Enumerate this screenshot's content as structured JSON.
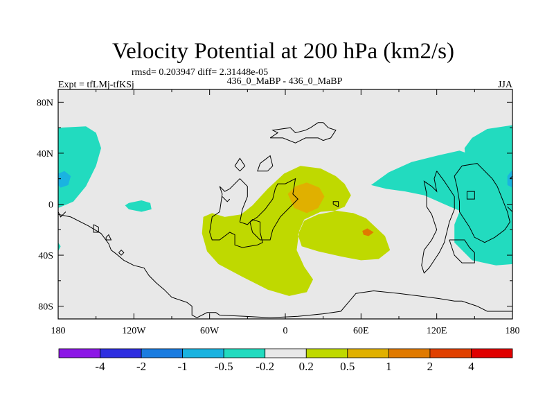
{
  "chart_data": {
    "type": "heatmap",
    "title": "Velocity Potential at 200 hPa (km2/s)",
    "stats_text": "rmsd= 0.203947 diff= 2.31448e-05",
    "left_label": "Expt = tfLMj-tfKSj",
    "center_label": "436_0_MaBP - 436_0_MaBP",
    "right_label": "JJA",
    "xlim": [
      -180,
      180
    ],
    "ylim": [
      -90,
      90
    ],
    "x_ticks": [
      {
        "value": -180,
        "label": "180"
      },
      {
        "value": -120,
        "label": "120W"
      },
      {
        "value": -60,
        "label": "60W"
      },
      {
        "value": 0,
        "label": "0"
      },
      {
        "value": 60,
        "label": "60E"
      },
      {
        "value": 120,
        "label": "120E"
      },
      {
        "value": 180,
        "label": "180"
      }
    ],
    "y_ticks": [
      {
        "value": 80,
        "label": "80N"
      },
      {
        "value": 40,
        "label": "40N"
      },
      {
        "value": 0,
        "label": "0"
      },
      {
        "value": -40,
        "label": "40S"
      },
      {
        "value": -80,
        "label": "80S"
      }
    ],
    "colorbar": {
      "colors": [
        "#8c17e6",
        "#2e2ee0",
        "#1a7ce0",
        "#1ab3e0",
        "#22dbbf",
        "#e8e8e8",
        "#bfd900",
        "#e0b000",
        "#e07a00",
        "#e04000",
        "#e00000"
      ],
      "levels": [
        "-4",
        "-2",
        "-1",
        "-0.5",
        "-0.2",
        "0.2",
        "0.5",
        "1",
        "2",
        "4"
      ]
    },
    "regions": [
      {
        "name": "pacific-negative",
        "level": "-0.5 to -0.2",
        "color": "#22dbbf",
        "points": [
          [
            -180,
            60
          ],
          [
            -158,
            61
          ],
          [
            -150,
            56
          ],
          [
            -146,
            44
          ],
          [
            -150,
            30
          ],
          [
            -158,
            14
          ],
          [
            -168,
            2
          ],
          [
            -180,
            -3
          ]
        ]
      },
      {
        "name": "pacific-negative-core",
        "level": "-1 to -0.5",
        "color": "#1ab3e0",
        "points": [
          [
            -180,
            24
          ],
          [
            -175,
            26
          ],
          [
            -170,
            22
          ],
          [
            -172,
            15
          ],
          [
            -178,
            13
          ],
          [
            -180,
            15
          ]
        ]
      },
      {
        "name": "tropical-pacific-negative",
        "level": "-0.5 to -0.2",
        "color": "#22dbbf",
        "points": [
          [
            -124,
            1
          ],
          [
            -114,
            3
          ],
          [
            -107,
            1
          ],
          [
            -106,
            -4
          ],
          [
            -114,
            -6
          ],
          [
            -124,
            -4
          ],
          [
            -127,
            -1
          ]
        ]
      },
      {
        "name": "south-pacific-negative",
        "level": "-0.5 to -0.2",
        "color": "#22dbbf",
        "points": [
          [
            -180,
            -30
          ],
          [
            -178,
            -33
          ],
          [
            -180,
            -37
          ]
        ]
      },
      {
        "name": "africa-positive",
        "level": "0.2 to 0.5",
        "color": "#bfd900",
        "points": [
          [
            -65,
            -10
          ],
          [
            -58,
            -7
          ],
          [
            -48,
            -10
          ],
          [
            -35,
            -8
          ],
          [
            -26,
            -1
          ],
          [
            -14,
            12
          ],
          [
            -1,
            24
          ],
          [
            12,
            30
          ],
          [
            28,
            28
          ],
          [
            40,
            22
          ],
          [
            47,
            16
          ],
          [
            52,
            7
          ],
          [
            47,
            -2
          ],
          [
            37,
            -6
          ],
          [
            26,
            -8
          ],
          [
            15,
            -13
          ],
          [
            10,
            -24
          ],
          [
            13,
            -33
          ],
          [
            26,
            -37
          ],
          [
            44,
            -41
          ],
          [
            60,
            -44
          ],
          [
            74,
            -43
          ],
          [
            83,
            -36
          ],
          [
            79,
            -25
          ],
          [
            64,
            -11
          ],
          [
            54,
            -7
          ],
          [
            40,
            -5
          ],
          [
            28,
            -6
          ],
          [
            15,
            -12
          ],
          [
            11,
            -21
          ],
          [
            9,
            -36
          ],
          [
            15,
            -49
          ],
          [
            22,
            -59
          ],
          [
            17,
            -69
          ],
          [
            3,
            -72
          ],
          [
            -14,
            -67
          ],
          [
            -34,
            -57
          ],
          [
            -53,
            -47
          ],
          [
            -62,
            -37
          ],
          [
            -66,
            -23
          ]
        ]
      },
      {
        "name": "africa-positive-core",
        "level": "0.5 to 1",
        "color": "#e0b000",
        "points": [
          [
            2,
            8
          ],
          [
            8,
            14
          ],
          [
            17,
            17
          ],
          [
            27,
            13
          ],
          [
            31,
            6
          ],
          [
            26,
            -3
          ],
          [
            17,
            -7
          ],
          [
            7,
            -3
          ]
        ]
      },
      {
        "name": "indian-ocean-positive-core",
        "level": "0.5 to 1",
        "color": "#e07a00",
        "points": [
          [
            61,
            -21
          ],
          [
            65,
            -19
          ],
          [
            70,
            -22
          ],
          [
            66,
            -25
          ],
          [
            62,
            -24
          ]
        ]
      },
      {
        "name": "asia-negative",
        "level": "-0.5 to -0.2",
        "color": "#22dbbf",
        "points": [
          [
            68,
            15
          ],
          [
            82,
            25
          ],
          [
            100,
            33
          ],
          [
            120,
            38
          ],
          [
            138,
            42
          ],
          [
            150,
            38
          ],
          [
            160,
            30
          ],
          [
            168,
            24
          ],
          [
            173,
            19
          ],
          [
            172,
            10
          ],
          [
            166,
            2
          ],
          [
            158,
            -4
          ],
          [
            150,
            -8
          ],
          [
            140,
            -6
          ],
          [
            126,
            0
          ],
          [
            110,
            7
          ],
          [
            95,
            10
          ],
          [
            80,
            12
          ]
        ]
      },
      {
        "name": "west-pacific-negative",
        "level": "-0.5 to -0.2",
        "color": "#22dbbf",
        "points": [
          [
            142,
            44
          ],
          [
            148,
            52
          ],
          [
            160,
            59
          ],
          [
            180,
            62
          ],
          [
            180,
            -47
          ],
          [
            167,
            -48
          ],
          [
            148,
            -44
          ],
          [
            134,
            -30
          ],
          [
            134,
            -16
          ],
          [
            142,
            4
          ],
          [
            144,
            24
          ]
        ]
      },
      {
        "name": "west-pacific-negative-core",
        "level": "-1 to -0.5",
        "color": "#1ab3e0",
        "points": [
          [
            176,
            22
          ],
          [
            179,
            26
          ],
          [
            180,
            26
          ],
          [
            180,
            13
          ],
          [
            176,
            15
          ]
        ]
      }
    ],
    "coastlines": [
      [
        [
          -180,
          -8
        ],
        [
          -170,
          -10
        ],
        [
          -156,
          -17
        ],
        [
          -146,
          -23
        ],
        [
          -140,
          -31
        ],
        [
          -138,
          -36
        ],
        [
          -134,
          -39
        ],
        [
          -128,
          -44
        ],
        [
          -120,
          -48
        ],
        [
          -112,
          -50
        ],
        [
          -108,
          -56
        ],
        [
          -102,
          -62
        ],
        [
          -96,
          -67
        ],
        [
          -90,
          -73
        ],
        [
          -78,
          -77
        ],
        [
          -74,
          -80
        ],
        [
          -74,
          -87
        ],
        [
          -70,
          -89
        ],
        [
          -62,
          -85
        ],
        [
          -55,
          -85
        ],
        [
          -52,
          -87
        ],
        [
          -32,
          -88
        ],
        [
          -12,
          -89
        ],
        [
          10,
          -88
        ],
        [
          30,
          -86
        ],
        [
          44,
          -84
        ],
        [
          56,
          -70
        ],
        [
          70,
          -68
        ],
        [
          90,
          -70
        ],
        [
          106,
          -72
        ],
        [
          122,
          -74
        ],
        [
          134,
          -76
        ],
        [
          140,
          -76
        ],
        [
          152,
          -80
        ],
        [
          160,
          -84
        ],
        [
          180,
          -84
        ]
      ],
      [
        [
          -60,
          -22
        ],
        [
          -58,
          -10
        ],
        [
          -52,
          -6
        ],
        [
          -50,
          8
        ],
        [
          -52,
          14
        ],
        [
          -48,
          10
        ],
        [
          -44,
          12
        ],
        [
          -36,
          20
        ],
        [
          -30,
          14
        ],
        [
          -30,
          6
        ],
        [
          -34,
          -4
        ],
        [
          -36,
          -14
        ],
        [
          -30,
          -16
        ],
        [
          -26,
          -12
        ],
        [
          -20,
          -14
        ],
        [
          -20,
          -22
        ],
        [
          -18,
          -30
        ],
        [
          -22,
          -32
        ],
        [
          -34,
          -34
        ],
        [
          -40,
          -32
        ],
        [
          -40,
          -24
        ],
        [
          -44,
          -22
        ],
        [
          -52,
          -28
        ],
        [
          -58,
          -28
        ],
        [
          -60,
          -22
        ]
      ],
      [
        [
          -10,
          4
        ],
        [
          -8,
          12
        ],
        [
          -6,
          16
        ],
        [
          0,
          16
        ],
        [
          8,
          20
        ],
        [
          6,
          8
        ],
        [
          10,
          4
        ],
        [
          2,
          -4
        ],
        [
          -4,
          -10
        ],
        [
          -10,
          -20
        ],
        [
          -12,
          -28
        ],
        [
          -20,
          -28
        ],
        [
          -26,
          -22
        ],
        [
          -28,
          -14
        ],
        [
          -22,
          -10
        ],
        [
          -16,
          -4
        ],
        [
          -10,
          4
        ]
      ],
      [
        [
          -14,
          26
        ],
        [
          -10,
          30
        ],
        [
          -12,
          38
        ],
        [
          -20,
          32
        ],
        [
          -22,
          26
        ],
        [
          -14,
          26
        ]
      ],
      [
        [
          -40,
          30
        ],
        [
          -36,
          36
        ],
        [
          -32,
          30
        ],
        [
          -36,
          26
        ],
        [
          -40,
          30
        ]
      ],
      [
        [
          -50,
          6
        ],
        [
          -46,
          2
        ],
        [
          -44,
          4
        ]
      ],
      [
        [
          -12,
          52
        ],
        [
          -6,
          56
        ],
        [
          -10,
          58
        ],
        [
          4,
          60
        ],
        [
          8,
          56
        ],
        [
          16,
          58
        ],
        [
          20,
          60
        ],
        [
          26,
          64
        ],
        [
          30,
          64
        ],
        [
          34,
          60
        ],
        [
          40,
          58
        ],
        [
          36,
          52
        ],
        [
          30,
          50
        ],
        [
          26,
          52
        ],
        [
          16,
          52
        ],
        [
          8,
          48
        ],
        [
          -2,
          52
        ],
        [
          -12,
          52
        ]
      ],
      [
        [
          38,
          0
        ],
        [
          42,
          -2
        ],
        [
          42,
          2
        ],
        [
          38,
          2
        ],
        [
          38,
          0
        ]
      ],
      [
        [
          120,
          26
        ],
        [
          126,
          18
        ],
        [
          130,
          12
        ],
        [
          134,
          6
        ],
        [
          134,
          -4
        ],
        [
          130,
          -14
        ],
        [
          128,
          -22
        ],
        [
          126,
          -30
        ],
        [
          122,
          -38
        ],
        [
          118,
          -44
        ],
        [
          114,
          -50
        ],
        [
          110,
          -54
        ],
        [
          108,
          -48
        ],
        [
          110,
          -36
        ],
        [
          116,
          -28
        ],
        [
          120,
          -20
        ],
        [
          116,
          -8
        ],
        [
          112,
          -2
        ],
        [
          112,
          8
        ],
        [
          110,
          18
        ],
        [
          116,
          14
        ],
        [
          120,
          10
        ],
        [
          118,
          20
        ],
        [
          120,
          26
        ]
      ],
      [
        [
          130,
          -28
        ],
        [
          142,
          -28
        ],
        [
          146,
          -34
        ],
        [
          150,
          -38
        ],
        [
          150,
          -46
        ],
        [
          140,
          -46
        ],
        [
          134,
          -40
        ],
        [
          130,
          -28
        ]
      ],
      [
        [
          140,
          30
        ],
        [
          152,
          32
        ],
        [
          164,
          20
        ],
        [
          168,
          14
        ],
        [
          172,
          4
        ],
        [
          176,
          -6
        ],
        [
          178,
          -14
        ],
        [
          174,
          -20
        ],
        [
          166,
          -26
        ],
        [
          158,
          -30
        ],
        [
          150,
          -26
        ],
        [
          146,
          -18
        ],
        [
          142,
          -12
        ],
        [
          138,
          -6
        ],
        [
          138,
          2
        ],
        [
          136,
          14
        ],
        [
          134,
          22
        ],
        [
          140,
          30
        ]
      ],
      [
        [
          178,
          20
        ],
        [
          180,
          22
        ],
        [
          180,
          -6
        ],
        [
          176,
          -2
        ]
      ],
      [
        [
          144,
          10
        ],
        [
          150,
          10
        ],
        [
          150,
          4
        ],
        [
          144,
          4
        ],
        [
          144,
          10
        ]
      ],
      [
        [
          -180,
          -6
        ],
        [
          -178,
          -10
        ],
        [
          -174,
          -6
        ]
      ],
      [
        [
          -152,
          -16
        ],
        [
          -148,
          -18
        ],
        [
          -148,
          -22
        ],
        [
          -152,
          -22
        ],
        [
          -152,
          -16
        ]
      ],
      [
        [
          -142,
          -26
        ],
        [
          -140,
          -24
        ],
        [
          -138,
          -28
        ],
        [
          -142,
          -28
        ],
        [
          -142,
          -26
        ]
      ],
      [
        [
          -132,
          -38
        ],
        [
          -130,
          -36
        ],
        [
          -128,
          -38
        ],
        [
          -130,
          -40
        ],
        [
          -132,
          -38
        ]
      ]
    ]
  }
}
